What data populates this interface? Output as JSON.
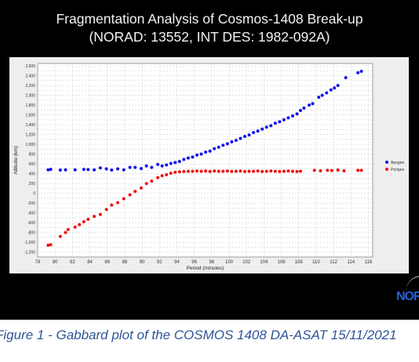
{
  "header": {
    "title_line1": "Fragmentation Analysis of Cosmos-1408 Break-up",
    "title_line2": "(NORAD: 13552, INT DES: 1982-092A)"
  },
  "caption": "Figure 1 - Gabbard plot of the COSMOS 1408 DA-ASAT 15/11/2021",
  "logo_text": "NOR",
  "colors": {
    "background": "#000000",
    "panel": "#eeeeee",
    "apogee": "#1010ee",
    "perigee": "#ee1010",
    "caption": "#2f5597"
  },
  "chart_data": {
    "type": "scatter",
    "title": "",
    "xlabel": "Period (minutes)",
    "ylabel": "Altitude (km)",
    "xlim": [
      78,
      116.5
    ],
    "ylim": [
      -1300,
      2650
    ],
    "xticks": [
      "78",
      "80",
      "82",
      "84",
      "86",
      "88",
      "90",
      "92",
      "94",
      "96",
      "98",
      "100",
      "102",
      "104",
      "106",
      "108",
      "110",
      "112",
      "114",
      "116"
    ],
    "yticks": [
      "-1,200",
      "-1,100",
      "-1,000",
      "-900",
      "-800",
      "-700",
      "-600",
      "-500",
      "-400",
      "-300",
      "-200",
      "-100",
      "0",
      "100",
      "200",
      "300",
      "400",
      "500",
      "600",
      "700",
      "800",
      "900",
      "1,000",
      "1,100",
      "1,200",
      "1,300",
      "1,400",
      "1,500",
      "1,600",
      "1,700",
      "1,800",
      "1,900",
      "2,000",
      "2,100",
      "2,200",
      "2,300",
      "2,400",
      "2,500",
      "2,600"
    ],
    "grid": true,
    "legend_position": "right",
    "series": [
      {
        "name": "Apogee",
        "color": "#1010ee",
        "points": [
          [
            79.2,
            480
          ],
          [
            79.5,
            490
          ],
          [
            80.6,
            475
          ],
          [
            81.2,
            480
          ],
          [
            82.3,
            480
          ],
          [
            83.3,
            490
          ],
          [
            83.8,
            485
          ],
          [
            84.5,
            480
          ],
          [
            85.2,
            520
          ],
          [
            85.9,
            500
          ],
          [
            86.5,
            475
          ],
          [
            87.2,
            500
          ],
          [
            87.9,
            480
          ],
          [
            88.6,
            530
          ],
          [
            89.2,
            530
          ],
          [
            89.9,
            505
          ],
          [
            90.5,
            560
          ],
          [
            91.1,
            530
          ],
          [
            91.8,
            590
          ],
          [
            92.3,
            560
          ],
          [
            92.8,
            580
          ],
          [
            93.3,
            610
          ],
          [
            93.8,
            630
          ],
          [
            94.3,
            650
          ],
          [
            94.8,
            690
          ],
          [
            95.3,
            720
          ],
          [
            95.8,
            740
          ],
          [
            96.3,
            780
          ],
          [
            96.8,
            800
          ],
          [
            97.3,
            840
          ],
          [
            97.8,
            860
          ],
          [
            98.3,
            910
          ],
          [
            98.8,
            940
          ],
          [
            99.3,
            980
          ],
          [
            99.8,
            1010
          ],
          [
            100.3,
            1050
          ],
          [
            100.8,
            1080
          ],
          [
            101.3,
            1120
          ],
          [
            101.8,
            1160
          ],
          [
            102.3,
            1190
          ],
          [
            102.8,
            1240
          ],
          [
            103.3,
            1270
          ],
          [
            103.8,
            1310
          ],
          [
            104.3,
            1350
          ],
          [
            104.8,
            1380
          ],
          [
            105.3,
            1430
          ],
          [
            105.8,
            1460
          ],
          [
            106.3,
            1500
          ],
          [
            106.8,
            1540
          ],
          [
            107.3,
            1580
          ],
          [
            107.8,
            1620
          ],
          [
            108.2,
            1690
          ],
          [
            108.6,
            1740
          ],
          [
            109.2,
            1800
          ],
          [
            109.6,
            1830
          ],
          [
            110.3,
            1960
          ],
          [
            110.7,
            2000
          ],
          [
            111.2,
            2050
          ],
          [
            111.7,
            2110
          ],
          [
            112.1,
            2150
          ],
          [
            112.5,
            2200
          ],
          [
            113.4,
            2360
          ],
          [
            114.8,
            2460
          ],
          [
            115.2,
            2490
          ]
        ]
      },
      {
        "name": "Perigee",
        "color": "#ee1010",
        "points": [
          [
            79.2,
            -1060
          ],
          [
            79.5,
            -1050
          ],
          [
            80.6,
            -880
          ],
          [
            81.2,
            -800
          ],
          [
            81.5,
            -740
          ],
          [
            82.3,
            -690
          ],
          [
            82.8,
            -640
          ],
          [
            83.3,
            -580
          ],
          [
            83.8,
            -530
          ],
          [
            84.5,
            -470
          ],
          [
            85.2,
            -430
          ],
          [
            85.9,
            -330
          ],
          [
            86.5,
            -240
          ],
          [
            87.2,
            -190
          ],
          [
            87.9,
            -110
          ],
          [
            88.6,
            -30
          ],
          [
            89.2,
            40
          ],
          [
            89.9,
            110
          ],
          [
            90.5,
            200
          ],
          [
            91.1,
            250
          ],
          [
            91.8,
            320
          ],
          [
            92.3,
            360
          ],
          [
            92.8,
            380
          ],
          [
            93.3,
            410
          ],
          [
            93.8,
            430
          ],
          [
            94.3,
            440
          ],
          [
            94.8,
            445
          ],
          [
            95.3,
            450
          ],
          [
            95.8,
            450
          ],
          [
            96.3,
            455
          ],
          [
            96.8,
            450
          ],
          [
            97.3,
            455
          ],
          [
            97.8,
            445
          ],
          [
            98.3,
            455
          ],
          [
            98.8,
            450
          ],
          [
            99.3,
            450
          ],
          [
            99.8,
            455
          ],
          [
            100.3,
            445
          ],
          [
            100.8,
            450
          ],
          [
            101.3,
            455
          ],
          [
            101.8,
            445
          ],
          [
            102.3,
            450
          ],
          [
            102.8,
            450
          ],
          [
            103.3,
            455
          ],
          [
            103.8,
            445
          ],
          [
            104.3,
            450
          ],
          [
            104.8,
            455
          ],
          [
            105.3,
            450
          ],
          [
            105.8,
            445
          ],
          [
            106.3,
            450
          ],
          [
            106.8,
            455
          ],
          [
            107.3,
            450
          ],
          [
            107.8,
            445
          ],
          [
            108.2,
            450
          ],
          [
            109.8,
            470
          ],
          [
            110.5,
            460
          ],
          [
            111.3,
            470
          ],
          [
            111.8,
            465
          ],
          [
            112.5,
            475
          ],
          [
            113.2,
            460
          ],
          [
            114.8,
            470
          ],
          [
            115.2,
            470
          ]
        ]
      }
    ]
  }
}
